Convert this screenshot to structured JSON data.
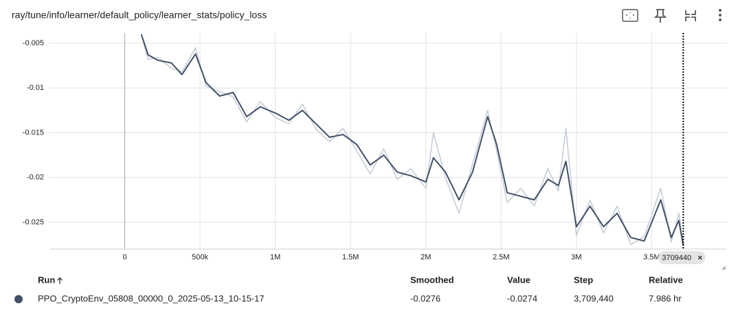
{
  "header": {
    "title": "ray/tune/info/learner/default_policy/learner_stats/policy_loss"
  },
  "chart_data": {
    "type": "line",
    "x": [
      110000,
      155000,
      220000,
      310000,
      380000,
      470000,
      540000,
      630000,
      720000,
      810000,
      900000,
      1000000,
      1090000,
      1180000,
      1270000,
      1360000,
      1450000,
      1540000,
      1630000,
      1720000,
      1810000,
      1900000,
      2000000,
      2050000,
      2130000,
      2220000,
      2310000,
      2410000,
      2470000,
      2540000,
      2630000,
      2720000,
      2810000,
      2880000,
      2930000,
      3000000,
      3090000,
      3180000,
      3270000,
      3360000,
      3450000,
      3560000,
      3630000,
      3680000,
      3709440
    ],
    "series": [
      {
        "name": "PPO_CryptoEnv_05808_00000_0_2025-05-13_10-15-17",
        "color": "#c6cdd9",
        "values": [
          -0.004,
          -0.0068,
          -0.0066,
          -0.0078,
          -0.0082,
          -0.0055,
          -0.0098,
          -0.0104,
          -0.011,
          -0.0138,
          -0.0115,
          -0.0133,
          -0.014,
          -0.0118,
          -0.0146,
          -0.016,
          -0.0145,
          -0.017,
          -0.0196,
          -0.0168,
          -0.0202,
          -0.019,
          -0.0212,
          -0.015,
          -0.02,
          -0.024,
          -0.0185,
          -0.0125,
          -0.017,
          -0.0228,
          -0.0212,
          -0.0232,
          -0.019,
          -0.0215,
          -0.0145,
          -0.0265,
          -0.0225,
          -0.0262,
          -0.0232,
          -0.0275,
          -0.0266,
          -0.0212,
          -0.0272,
          -0.024,
          -0.0274
        ]
      },
      {
        "name": "PPO_CryptoEnv_05808_00000_0_2025-05-13_10-15-17",
        "color": "#425066",
        "values": [
          -0.004,
          -0.0063,
          -0.0069,
          -0.0072,
          -0.0085,
          -0.0062,
          -0.0094,
          -0.0109,
          -0.0105,
          -0.0132,
          -0.0121,
          -0.0128,
          -0.0136,
          -0.0125,
          -0.014,
          -0.0155,
          -0.0152,
          -0.0163,
          -0.0186,
          -0.0175,
          -0.0194,
          -0.0198,
          -0.0205,
          -0.0178,
          -0.0194,
          -0.0225,
          -0.0194,
          -0.0132,
          -0.0163,
          -0.0217,
          -0.0221,
          -0.0225,
          -0.0202,
          -0.0209,
          -0.0182,
          -0.0255,
          -0.0232,
          -0.0255,
          -0.024,
          -0.0267,
          -0.0271,
          -0.0225,
          -0.0267,
          -0.0248,
          -0.0276
        ]
      }
    ],
    "xlim": [
      -500000,
      4000000
    ],
    "xticks": [
      0,
      {
        "value": 500000,
        "label": "500k"
      },
      {
        "value": 1000000,
        "label": "1M"
      },
      {
        "value": 1500000,
        "label": "1.5M"
      },
      {
        "value": 2000000,
        "label": "2M"
      },
      {
        "value": 2500000,
        "label": "2.5M"
      },
      {
        "value": 3000000,
        "label": "3M"
      },
      {
        "value": 3500000,
        "label": "3.5M"
      }
    ],
    "ylim": [
      -0.028,
      -0.004
    ],
    "yticks": [
      -0.025,
      -0.02,
      -0.015,
      -0.01,
      -0.005
    ],
    "grid": true,
    "hover_step": 3709440
  },
  "table": {
    "header": [
      "Run",
      "Smoothed",
      "Value",
      "Step",
      "Relative"
    ],
    "rows": [
      [
        "PPO_CryptoEnv_05808_00000_0_2025-05-13_10-15-17",
        "-0.0276",
        "-0.0274",
        "3,709,440",
        "7.986 hr"
      ]
    ],
    "dot_color": "#425066"
  }
}
